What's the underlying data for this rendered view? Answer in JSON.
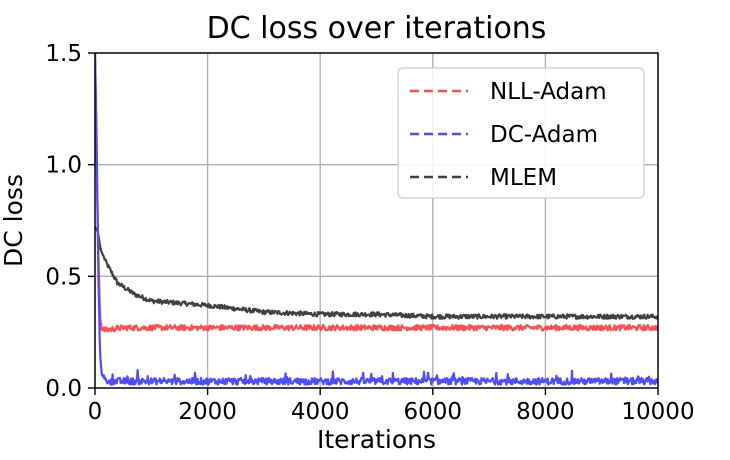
{
  "chart_data": {
    "type": "line",
    "title": "DC loss over iterations",
    "xlabel": "Iterations",
    "ylabel": "DC loss",
    "xlim": [
      0,
      10000
    ],
    "ylim": [
      0,
      1.5
    ],
    "x_ticks": [
      0,
      2000,
      4000,
      6000,
      8000,
      10000
    ],
    "y_ticks": [
      0.0,
      0.5,
      1.0,
      1.5
    ],
    "x_tick_labels": [
      "0",
      "2000",
      "4000",
      "6000",
      "8000",
      "10000"
    ],
    "y_tick_labels": [
      "0.0",
      "0.5",
      "1.0",
      "1.5"
    ],
    "grid": true,
    "legend_position": "top-right",
    "series": [
      {
        "name": "NLL-Adam",
        "color": "#ff4d4d",
        "style": "dashed-legend",
        "x": [
          0,
          30,
          60,
          90,
          120,
          200,
          500,
          1000,
          2000,
          3000,
          4000,
          5000,
          6000,
          7000,
          8000,
          9000,
          10000
        ],
        "y": [
          1.5,
          1.0,
          0.6,
          0.32,
          0.26,
          0.26,
          0.27,
          0.27,
          0.27,
          0.27,
          0.27,
          0.27,
          0.27,
          0.27,
          0.27,
          0.27,
          0.27
        ],
        "noise": 0.012
      },
      {
        "name": "DC-Adam",
        "color": "#4d4dff",
        "style": "dashed-legend",
        "x": [
          0,
          30,
          60,
          90,
          120,
          200,
          500,
          1000,
          2000,
          3000,
          4000,
          5000,
          6000,
          7000,
          8000,
          9000,
          10000
        ],
        "y": [
          1.5,
          1.1,
          0.5,
          0.15,
          0.06,
          0.03,
          0.03,
          0.03,
          0.03,
          0.03,
          0.03,
          0.03,
          0.03,
          0.03,
          0.03,
          0.03,
          0.03
        ],
        "noise": 0.015
      },
      {
        "name": "MLEM",
        "color": "#404040",
        "style": "dashed-legend",
        "x": [
          0,
          50,
          100,
          200,
          400,
          700,
          1000,
          1500,
          2000,
          3000,
          4000,
          5000,
          6000,
          7000,
          8000,
          9000,
          10000
        ],
        "y": [
          0.72,
          0.7,
          0.62,
          0.56,
          0.47,
          0.42,
          0.39,
          0.38,
          0.37,
          0.34,
          0.33,
          0.33,
          0.32,
          0.32,
          0.32,
          0.32,
          0.32
        ],
        "noise": 0.01
      }
    ]
  }
}
